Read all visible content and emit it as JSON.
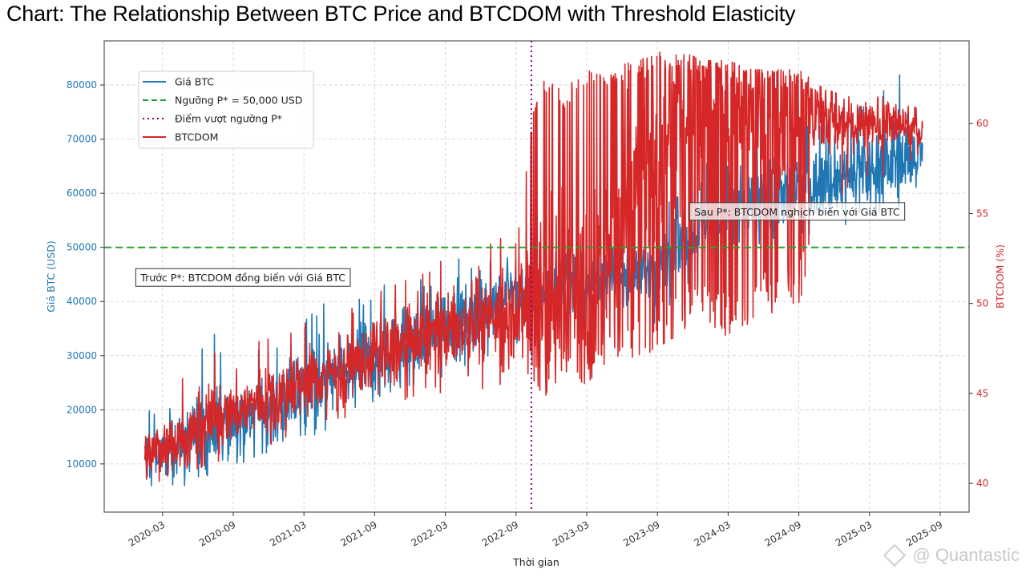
{
  "page": {
    "title": "Chart: The Relationship Between BTC Price and BTCDOM with Threshold Elasticity",
    "watermark": "@ Quantastic"
  },
  "chart_data": {
    "type": "line",
    "title": "Chart: The Relationship Between BTC Price and BTCDOM with Threshold Elasticity",
    "xlabel": "Thời gian",
    "ylabel_left": "Giá BTC (USD)",
    "ylabel_right": "BTCDOM (%)",
    "x_range": [
      "2019-10",
      "2025-11"
    ],
    "ylim_left": [
      1100,
      88150
    ],
    "ylim_right": [
      38.4,
      64.6
    ],
    "x_ticks": [
      "2020-03",
      "2020-09",
      "2021-03",
      "2021-09",
      "2022-03",
      "2022-09",
      "2023-03",
      "2023-09",
      "2024-03",
      "2024-09",
      "2025-03",
      "2025-09"
    ],
    "y_ticks_left": [
      10000,
      20000,
      30000,
      40000,
      50000,
      60000,
      70000,
      80000
    ],
    "y_ticks_right": [
      40,
      45,
      50,
      55,
      60
    ],
    "grid": true,
    "legend_position": "upper-left",
    "colors": {
      "btc": "#1f77b4",
      "btcdom": "#d62728",
      "threshold": "#2ca02c",
      "crossing": "#800080",
      "left_axis": "#1f77b4",
      "right_axis": "#d62728"
    },
    "legend": [
      {
        "label": "Giá BTC",
        "style": "solid",
        "color_key": "btc"
      },
      {
        "label": "Ngưỡng P* = 50,000 USD",
        "style": "dashed",
        "color_key": "threshold"
      },
      {
        "label": "Điểm vượt ngưỡng P*",
        "style": "dotted",
        "color_key": "crossing"
      },
      {
        "label": "BTCDOM",
        "style": "solid",
        "color_key": "btcdom"
      }
    ],
    "threshold": {
      "value": 50000,
      "axis": "left"
    },
    "crossing_date": "2022-10",
    "annotations": [
      {
        "text": "Trước P*: BTCDOM đồng biến với Giá BTC",
        "x": "2020-01",
        "y_left": 44000
      },
      {
        "text": "Sau P*: BTCDOM nghịch biến với Giá BTC",
        "x": "2023-12",
        "y_left": 56200
      }
    ],
    "series": [
      {
        "name": "Giá BTC",
        "axis": "left",
        "color_key": "btc",
        "x": [
          "2020-01",
          "2020-03",
          "2020-05",
          "2020-07",
          "2020-09",
          "2020-11",
          "2021-01",
          "2021-03",
          "2021-05",
          "2021-07",
          "2021-09",
          "2021-11",
          "2022-01",
          "2022-03",
          "2022-05",
          "2022-07",
          "2022-09",
          "2022-11",
          "2023-01",
          "2023-03",
          "2023-05",
          "2023-07",
          "2023-09",
          "2023-11",
          "2024-01",
          "2024-03",
          "2024-05",
          "2024-07",
          "2024-09",
          "2024-11",
          "2025-01",
          "2025-03",
          "2025-05",
          "2025-07"
        ],
        "mean": [
          11000,
          12500,
          14500,
          16500,
          18000,
          19500,
          21000,
          23000,
          25500,
          27000,
          29500,
          31500,
          34000,
          36000,
          37500,
          39500,
          41500,
          42500,
          43000,
          43500,
          44000,
          45000,
          46000,
          51000,
          55000,
          57500,
          58500,
          59000,
          60500,
          62000,
          63500,
          64500,
          66000,
          68000
        ],
        "low": [
          5000,
          5000,
          6000,
          8000,
          9000,
          11000,
          12000,
          14000,
          16000,
          18000,
          20000,
          22000,
          24000,
          26000,
          28000,
          30000,
          32000,
          33000,
          33500,
          34000,
          34500,
          35000,
          36000,
          42000,
          46000,
          49000,
          50000,
          50000,
          51000,
          53000,
          54000,
          55000,
          56000,
          60000
        ],
        "high": [
          20000,
          20000,
          26000,
          35500,
          30000,
          31000,
          33000,
          38000,
          40000,
          40000,
          43000,
          45000,
          46000,
          48000,
          48000,
          49000,
          49000,
          49000,
          49500,
          50000,
          50500,
          51000,
          56000,
          62000,
          66000,
          70000,
          72000,
          72000,
          73000,
          74000,
          75000,
          77000,
          84500,
          76000
        ]
      },
      {
        "name": "BTCDOM",
        "axis": "right",
        "color_key": "btcdom",
        "x": [
          "2020-01",
          "2020-03",
          "2020-05",
          "2020-07",
          "2020-09",
          "2020-11",
          "2021-01",
          "2021-03",
          "2021-05",
          "2021-07",
          "2021-09",
          "2021-11",
          "2022-01",
          "2022-03",
          "2022-05",
          "2022-07",
          "2022-09",
          "2022-11",
          "2023-01",
          "2023-03",
          "2023-05",
          "2023-07",
          "2023-09",
          "2023-11",
          "2024-01",
          "2024-03",
          "2024-05",
          "2024-07",
          "2024-09",
          "2024-11",
          "2025-01",
          "2025-03",
          "2025-05",
          "2025-07"
        ],
        "mean": [
          41.5,
          42,
          42.5,
          43.5,
          44,
          44.5,
          45,
          45.5,
          46,
          46.5,
          47,
          47.5,
          48,
          48.5,
          49,
          49,
          49.5,
          50,
          50.5,
          51,
          52,
          56,
          58,
          61,
          61.5,
          61,
          61,
          60.5,
          60.5,
          60.5,
          60,
          60,
          60,
          59.5
        ],
        "low": [
          40,
          40,
          40.5,
          41,
          41.5,
          42,
          42,
          43,
          43.5,
          43.5,
          44,
          44.5,
          45,
          45,
          45.5,
          45,
          46,
          44.5,
          46,
          45.5,
          47,
          46.5,
          47.5,
          48,
          49,
          48,
          49,
          49.5,
          50,
          54,
          56,
          57,
          57,
          58
        ],
        "high": [
          44,
          45,
          46,
          47.5,
          47,
          48,
          48.5,
          49,
          50,
          50,
          51,
          51.5,
          52,
          52.5,
          53,
          53.5,
          54,
          63,
          62,
          63,
          63,
          63.5,
          64,
          64,
          63.5,
          63.5,
          63,
          63,
          63,
          62,
          61.5,
          61.5,
          61.5,
          61
        ],
        "spike_window": [
          "2022-10",
          "2024-10"
        ]
      }
    ]
  }
}
